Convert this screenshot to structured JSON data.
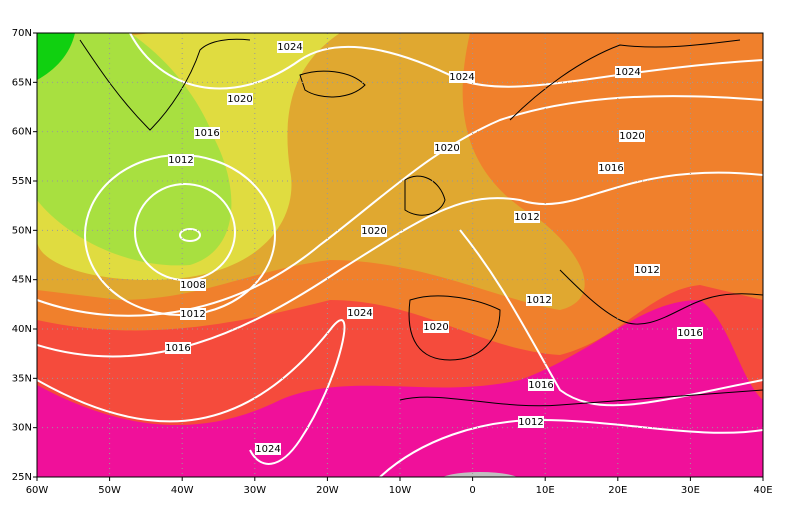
{
  "map": {
    "lat_labels": [
      {
        "value": 70,
        "label": "70N"
      },
      {
        "value": 65,
        "label": "65N"
      },
      {
        "value": 60,
        "label": "60N"
      },
      {
        "value": 55,
        "label": "55N"
      },
      {
        "value": 50,
        "label": "50N"
      },
      {
        "value": 45,
        "label": "45N"
      },
      {
        "value": 40,
        "label": "40N"
      },
      {
        "value": 35,
        "label": "35N"
      },
      {
        "value": 30,
        "label": "30N"
      },
      {
        "value": 25,
        "label": "25N"
      }
    ],
    "lon_labels": [
      {
        "value": -60,
        "label": "60W"
      },
      {
        "value": -50,
        "label": "50W"
      },
      {
        "value": -40,
        "label": "40W"
      },
      {
        "value": -30,
        "label": "30W"
      },
      {
        "value": -20,
        "label": "20W"
      },
      {
        "value": -10,
        "label": "10W"
      },
      {
        "value": 0,
        "label": "0"
      },
      {
        "value": 10,
        "label": "10E"
      },
      {
        "value": 20,
        "label": "20E"
      },
      {
        "value": 30,
        "label": "30E"
      },
      {
        "value": 40,
        "label": "40E"
      }
    ],
    "contour_labels": [
      "1024",
      "1024",
      "1024",
      "1020",
      "1016",
      "1020",
      "1020",
      "1012",
      "1016",
      "1012",
      "1020",
      "1012",
      "1008",
      "1012",
      "1012",
      "1024",
      "1020",
      "1016",
      "1016",
      "1016",
      "1012",
      "1024"
    ]
  }
}
